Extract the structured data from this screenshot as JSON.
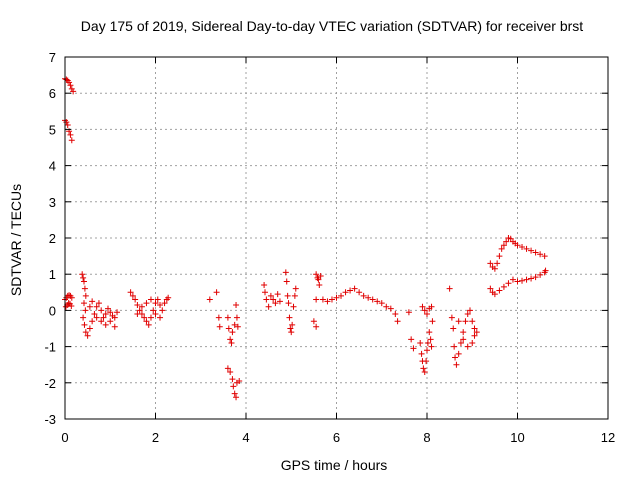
{
  "chart_data": {
    "type": "scatter",
    "title": "Day 175 of 2019, Sidereal Day-to-day VTEC variation (SDTVAR) for receiver brst",
    "xlabel": "GPS time / hours",
    "ylabel": "SDTVAR / TECUs",
    "xlim": [
      0,
      12
    ],
    "ylim": [
      -3,
      7
    ],
    "xticks": [
      "0",
      "2",
      "4",
      "6",
      "8",
      "10",
      "12"
    ],
    "yticks": [
      "-3",
      "-2",
      "-1",
      "0",
      "1",
      "2",
      "3",
      "4",
      "5",
      "6",
      "7"
    ],
    "grid": true,
    "marker": "+",
    "color": "#e00000",
    "series": [
      {
        "points": [
          [
            0.0,
            6.4
          ],
          [
            0.03,
            6.38
          ],
          [
            0.06,
            6.35
          ],
          [
            0.09,
            6.3
          ],
          [
            0.12,
            6.22
          ],
          [
            0.15,
            6.12
          ],
          [
            0.18,
            6.05
          ],
          [
            0.0,
            5.25
          ],
          [
            0.03,
            5.2
          ],
          [
            0.06,
            5.12
          ],
          [
            0.09,
            4.95
          ],
          [
            0.12,
            4.85
          ],
          [
            0.15,
            4.7
          ],
          [
            0.0,
            0.3
          ],
          [
            0.03,
            0.35
          ],
          [
            0.06,
            0.4
          ],
          [
            0.09,
            0.42
          ],
          [
            0.12,
            0.4
          ],
          [
            0.15,
            0.35
          ],
          [
            0.02,
            0.1
          ],
          [
            0.05,
            0.15
          ],
          [
            0.08,
            0.2
          ],
          [
            0.11,
            0.18
          ],
          [
            0.14,
            0.12
          ],
          [
            0.38,
            1.0
          ],
          [
            0.4,
            0.9
          ],
          [
            0.42,
            0.8
          ],
          [
            0.44,
            0.6
          ],
          [
            0.46,
            0.4
          ],
          [
            0.42,
            0.2
          ],
          [
            0.45,
            0.0
          ],
          [
            0.4,
            -0.2
          ],
          [
            0.43,
            -0.4
          ],
          [
            0.46,
            -0.6
          ],
          [
            0.5,
            -0.7
          ],
          [
            0.55,
            -0.5
          ],
          [
            0.6,
            -0.3
          ],
          [
            0.65,
            -0.1
          ],
          [
            0.7,
            0.1
          ],
          [
            0.75,
            0.2
          ],
          [
            0.8,
            0.0
          ],
          [
            0.85,
            -0.2
          ],
          [
            0.9,
            -0.1
          ],
          [
            0.95,
            0.05
          ],
          [
            1.0,
            -0.05
          ],
          [
            1.05,
            -0.15
          ],
          [
            1.1,
            -0.2
          ],
          [
            1.15,
            -0.05
          ],
          [
            0.55,
            0.1
          ],
          [
            0.6,
            0.25
          ],
          [
            0.7,
            -0.2
          ],
          [
            0.8,
            -0.3
          ],
          [
            0.9,
            -0.4
          ],
          [
            1.0,
            -0.3
          ],
          [
            1.1,
            -0.45
          ],
          [
            1.45,
            0.5
          ],
          [
            1.5,
            0.4
          ],
          [
            1.55,
            0.3
          ],
          [
            1.6,
            0.15
          ],
          [
            1.65,
            0.0
          ],
          [
            1.7,
            -0.1
          ],
          [
            1.75,
            -0.2
          ],
          [
            1.8,
            -0.3
          ],
          [
            1.85,
            -0.4
          ],
          [
            1.9,
            -0.2
          ],
          [
            1.95,
            0.0
          ],
          [
            2.0,
            0.2
          ],
          [
            2.05,
            0.3
          ],
          [
            2.1,
            0.15
          ],
          [
            2.15,
            0.0
          ],
          [
            2.2,
            0.2
          ],
          [
            2.25,
            0.3
          ],
          [
            2.28,
            0.35
          ],
          [
            1.6,
            -0.1
          ],
          [
            1.7,
            0.1
          ],
          [
            1.8,
            0.2
          ],
          [
            1.9,
            0.3
          ],
          [
            2.0,
            -0.1
          ],
          [
            2.1,
            -0.2
          ],
          [
            3.2,
            0.3
          ],
          [
            3.35,
            0.5
          ],
          [
            3.4,
            -0.2
          ],
          [
            3.42,
            -0.45
          ],
          [
            3.6,
            -0.2
          ],
          [
            3.62,
            -0.5
          ],
          [
            3.65,
            -0.8
          ],
          [
            3.68,
            -0.9
          ],
          [
            3.7,
            -0.6
          ],
          [
            3.75,
            -0.4
          ],
          [
            3.78,
            0.15
          ],
          [
            3.8,
            -0.2
          ],
          [
            3.82,
            -0.45
          ],
          [
            3.6,
            -1.6
          ],
          [
            3.65,
            -1.7
          ],
          [
            3.7,
            -1.9
          ],
          [
            3.72,
            -2.1
          ],
          [
            3.75,
            -2.3
          ],
          [
            3.78,
            -2.4
          ],
          [
            3.8,
            -2.0
          ],
          [
            3.85,
            -1.95
          ],
          [
            4.4,
            0.7
          ],
          [
            4.42,
            0.5
          ],
          [
            4.45,
            0.3
          ],
          [
            4.5,
            0.1
          ],
          [
            4.55,
            0.4
          ],
          [
            4.6,
            0.3
          ],
          [
            4.65,
            0.2
          ],
          [
            4.7,
            0.45
          ],
          [
            4.75,
            0.25
          ],
          [
            4.88,
            1.05
          ],
          [
            4.9,
            0.8
          ],
          [
            4.92,
            0.4
          ],
          [
            4.94,
            0.2
          ],
          [
            4.96,
            -0.2
          ],
          [
            4.98,
            -0.5
          ],
          [
            5.0,
            -0.6
          ],
          [
            5.02,
            -0.4
          ],
          [
            5.05,
            0.1
          ],
          [
            5.08,
            0.4
          ],
          [
            5.1,
            0.6
          ],
          [
            5.55,
            1.0
          ],
          [
            5.58,
            0.9
          ],
          [
            5.6,
            0.85
          ],
          [
            5.62,
            0.7
          ],
          [
            5.65,
            0.95
          ],
          [
            5.5,
            -0.3
          ],
          [
            5.55,
            -0.45
          ],
          [
            5.55,
            0.3
          ],
          [
            5.7,
            0.3
          ],
          [
            5.8,
            0.25
          ],
          [
            5.9,
            0.3
          ],
          [
            6.0,
            0.35
          ],
          [
            6.1,
            0.4
          ],
          [
            6.2,
            0.5
          ],
          [
            6.3,
            0.55
          ],
          [
            6.4,
            0.6
          ],
          [
            6.5,
            0.5
          ],
          [
            6.6,
            0.4
          ],
          [
            6.7,
            0.35
          ],
          [
            6.8,
            0.3
          ],
          [
            6.9,
            0.25
          ],
          [
            7.0,
            0.2
          ],
          [
            7.1,
            0.1
          ],
          [
            7.2,
            0.05
          ],
          [
            7.3,
            -0.1
          ],
          [
            7.35,
            -0.3
          ],
          [
            7.6,
            -0.05
          ],
          [
            7.65,
            -0.8
          ],
          [
            7.7,
            -1.05
          ],
          [
            7.85,
            -0.9
          ],
          [
            7.88,
            -1.2
          ],
          [
            7.9,
            -1.4
          ],
          [
            7.92,
            -1.6
          ],
          [
            7.95,
            -1.7
          ],
          [
            7.98,
            -1.4
          ],
          [
            8.0,
            -1.1
          ],
          [
            8.02,
            -0.9
          ],
          [
            8.05,
            -0.6
          ],
          [
            8.08,
            -0.8
          ],
          [
            8.1,
            -1.0
          ],
          [
            7.9,
            0.1
          ],
          [
            7.95,
            0.0
          ],
          [
            8.0,
            -0.1
          ],
          [
            8.05,
            0.05
          ],
          [
            8.1,
            0.1
          ],
          [
            8.12,
            -0.3
          ],
          [
            8.5,
            0.6
          ],
          [
            8.55,
            -0.2
          ],
          [
            8.58,
            -0.5
          ],
          [
            8.6,
            -1.0
          ],
          [
            8.62,
            -1.3
          ],
          [
            8.65,
            -1.5
          ],
          [
            8.7,
            -1.2
          ],
          [
            8.75,
            -0.9
          ],
          [
            8.8,
            -0.6
          ],
          [
            8.85,
            -0.3
          ],
          [
            8.9,
            -0.1
          ],
          [
            8.95,
            0.0
          ],
          [
            9.0,
            -0.3
          ],
          [
            9.05,
            -0.5
          ],
          [
            9.1,
            -0.6
          ],
          [
            8.7,
            -0.3
          ],
          [
            8.8,
            -0.8
          ],
          [
            8.9,
            -1.0
          ],
          [
            9.0,
            -0.9
          ],
          [
            9.05,
            -0.7
          ],
          [
            9.4,
            1.3
          ],
          [
            9.45,
            1.2
          ],
          [
            9.5,
            1.15
          ],
          [
            9.55,
            1.3
          ],
          [
            9.6,
            1.5
          ],
          [
            9.65,
            1.7
          ],
          [
            9.7,
            1.8
          ],
          [
            9.75,
            1.9
          ],
          [
            9.8,
            2.0
          ],
          [
            9.85,
            1.98
          ],
          [
            9.9,
            1.9
          ],
          [
            9.95,
            1.85
          ],
          [
            10.0,
            1.8
          ],
          [
            10.1,
            1.75
          ],
          [
            10.2,
            1.7
          ],
          [
            10.3,
            1.65
          ],
          [
            10.4,
            1.6
          ],
          [
            10.5,
            1.55
          ],
          [
            10.6,
            1.5
          ],
          [
            9.4,
            0.6
          ],
          [
            9.45,
            0.5
          ],
          [
            9.5,
            0.45
          ],
          [
            9.6,
            0.55
          ],
          [
            9.7,
            0.65
          ],
          [
            9.8,
            0.75
          ],
          [
            9.9,
            0.85
          ],
          [
            10.0,
            0.8
          ],
          [
            10.1,
            0.82
          ],
          [
            10.2,
            0.85
          ],
          [
            10.3,
            0.88
          ],
          [
            10.4,
            0.92
          ],
          [
            10.5,
            0.98
          ],
          [
            10.6,
            1.05
          ],
          [
            10.62,
            1.1
          ]
        ]
      }
    ]
  }
}
